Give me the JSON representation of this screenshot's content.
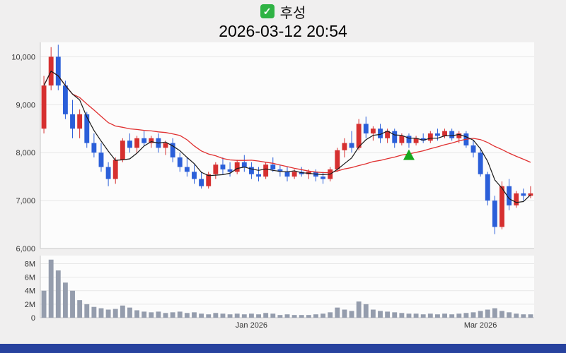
{
  "header": {
    "check_glyph": "✓",
    "title": "후성",
    "datetime": "2026-03-12 20:54"
  },
  "colors": {
    "up": "#d63030",
    "down": "#2b5fd9",
    "ma_fast": "#1a1a1a",
    "ma_slow": "#e03030",
    "volume": "#959dad",
    "grid": "#e7e7e7",
    "axis": "#c9c9c9",
    "tick_text": "#333333",
    "panel_bg": "#fcfcfc",
    "page_bg": "#f0efef",
    "marker": "#17a81e",
    "checkbox_bg": "#2fb344",
    "footer": "#27429e"
  },
  "chart_data": {
    "type": "candlestick+volume",
    "title": "후성",
    "subtitle": "2026-03-12 20:54",
    "ylim": [
      6000,
      10300
    ],
    "y_ticks": [
      {
        "value": 6000,
        "label": "6,000"
      },
      {
        "value": 7000,
        "label": "7,000"
      },
      {
        "value": 8000,
        "label": "8,000"
      },
      {
        "value": 9000,
        "label": "9,000"
      },
      {
        "value": 10000,
        "label": "10,000"
      }
    ],
    "volume_unit": "M",
    "volume_ylim": [
      0,
      9.2
    ],
    "volume_ticks": [
      {
        "value": 0,
        "label": "0"
      },
      {
        "value": 2,
        "label": "2M"
      },
      {
        "value": 4,
        "label": "4M"
      },
      {
        "value": 6,
        "label": "6M"
      },
      {
        "value": 8,
        "label": "8M"
      }
    ],
    "x_ticks": [
      {
        "index": 29,
        "label": "Jan 2026"
      },
      {
        "index": 61,
        "label": "Mar 2026"
      }
    ],
    "ma_fast_period": 5,
    "ma_slow_period": 20,
    "marker": {
      "index": 51,
      "price": 7950,
      "shape": "triangle-up"
    },
    "candles_format": [
      "open",
      "high",
      "low",
      "close",
      "volume_millions"
    ],
    "candles": [
      [
        8500,
        9600,
        8400,
        9400,
        4.0
      ],
      [
        9400,
        10200,
        9300,
        10000,
        8.6
      ],
      [
        10000,
        10250,
        9300,
        9400,
        7.0
      ],
      [
        9400,
        9500,
        8700,
        8800,
        5.2
      ],
      [
        8800,
        9100,
        8300,
        8500,
        4.0
      ],
      [
        8500,
        8900,
        8300,
        8800,
        2.6
      ],
      [
        8800,
        8850,
        8100,
        8200,
        2.0
      ],
      [
        8200,
        8400,
        7900,
        8000,
        1.6
      ],
      [
        8000,
        8200,
        7600,
        7700,
        1.4
      ],
      [
        7700,
        7800,
        7300,
        7450,
        1.2
      ],
      [
        7450,
        7900,
        7350,
        7850,
        1.3
      ],
      [
        7850,
        8300,
        7800,
        8250,
        1.8
      ],
      [
        8250,
        8400,
        8000,
        8100,
        1.5
      ],
      [
        8100,
        8350,
        8000,
        8300,
        1.1
      ],
      [
        8300,
        8450,
        8150,
        8200,
        0.9
      ],
      [
        8200,
        8350,
        8100,
        8300,
        0.8
      ],
      [
        8300,
        8400,
        8000,
        8100,
        0.9
      ],
      [
        8100,
        8250,
        7950,
        8200,
        0.7
      ],
      [
        8200,
        8300,
        7800,
        7900,
        0.8
      ],
      [
        7900,
        8000,
        7600,
        7700,
        0.9
      ],
      [
        7700,
        7900,
        7500,
        7600,
        0.7
      ],
      [
        7600,
        7750,
        7350,
        7450,
        0.8
      ],
      [
        7450,
        7600,
        7250,
        7300,
        0.6
      ],
      [
        7300,
        7600,
        7250,
        7550,
        0.5
      ],
      [
        7550,
        7800,
        7450,
        7750,
        0.7
      ],
      [
        7750,
        7900,
        7550,
        7650,
        0.6
      ],
      [
        7650,
        7800,
        7500,
        7600,
        0.5
      ],
      [
        7600,
        7850,
        7550,
        7800,
        0.6
      ],
      [
        7800,
        7950,
        7600,
        7700,
        0.5
      ],
      [
        7700,
        7800,
        7450,
        7550,
        0.6
      ],
      [
        7550,
        7700,
        7400,
        7500,
        0.5
      ],
      [
        7500,
        7800,
        7450,
        7750,
        0.7
      ],
      [
        7750,
        7900,
        7600,
        7650,
        0.6
      ],
      [
        7650,
        7750,
        7500,
        7600,
        0.4
      ],
      [
        7600,
        7700,
        7400,
        7500,
        0.5
      ],
      [
        7500,
        7650,
        7450,
        7600,
        0.4
      ],
      [
        7600,
        7700,
        7500,
        7550,
        0.4
      ],
      [
        7550,
        7650,
        7450,
        7600,
        0.4
      ],
      [
        7600,
        7650,
        7400,
        7500,
        0.5
      ],
      [
        7500,
        7600,
        7350,
        7450,
        0.6
      ],
      [
        7450,
        7700,
        7400,
        7650,
        0.8
      ],
      [
        7650,
        8100,
        7600,
        8050,
        1.5
      ],
      [
        8050,
        8300,
        7900,
        8200,
        1.2
      ],
      [
        8200,
        8450,
        8000,
        8100,
        1.0
      ],
      [
        8100,
        8700,
        8050,
        8600,
        2.4
      ],
      [
        8600,
        8750,
        8300,
        8400,
        2.0
      ],
      [
        8400,
        8550,
        8250,
        8500,
        1.2
      ],
      [
        8500,
        8600,
        8200,
        8300,
        1.0
      ],
      [
        8300,
        8500,
        8200,
        8450,
        0.9
      ],
      [
        8450,
        8500,
        8100,
        8200,
        0.8
      ],
      [
        8200,
        8400,
        8150,
        8350,
        0.7
      ],
      [
        8350,
        8400,
        8100,
        8200,
        0.6
      ],
      [
        8200,
        8350,
        8150,
        8300,
        0.6
      ],
      [
        8300,
        8400,
        8200,
        8250,
        0.5
      ],
      [
        8250,
        8450,
        8200,
        8400,
        0.6
      ],
      [
        8400,
        8500,
        8250,
        8350,
        0.5
      ],
      [
        8350,
        8500,
        8300,
        8450,
        0.6
      ],
      [
        8450,
        8500,
        8250,
        8300,
        0.5
      ],
      [
        8300,
        8450,
        8200,
        8400,
        0.6
      ],
      [
        8400,
        8450,
        8100,
        8150,
        0.7
      ],
      [
        8150,
        8250,
        7900,
        8000,
        0.8
      ],
      [
        8000,
        8100,
        7500,
        7550,
        1.0
      ],
      [
        7550,
        7600,
        6900,
        7000,
        1.2
      ],
      [
        7000,
        7100,
        6300,
        6450,
        1.4
      ],
      [
        6450,
        7400,
        6400,
        7300,
        1.0
      ],
      [
        7300,
        7450,
        6800,
        6900,
        0.8
      ],
      [
        6900,
        7200,
        6850,
        7150,
        0.6
      ],
      [
        7150,
        7250,
        7000,
        7100,
        0.5
      ],
      [
        7100,
        7300,
        7050,
        7150,
        0.5
      ]
    ]
  }
}
